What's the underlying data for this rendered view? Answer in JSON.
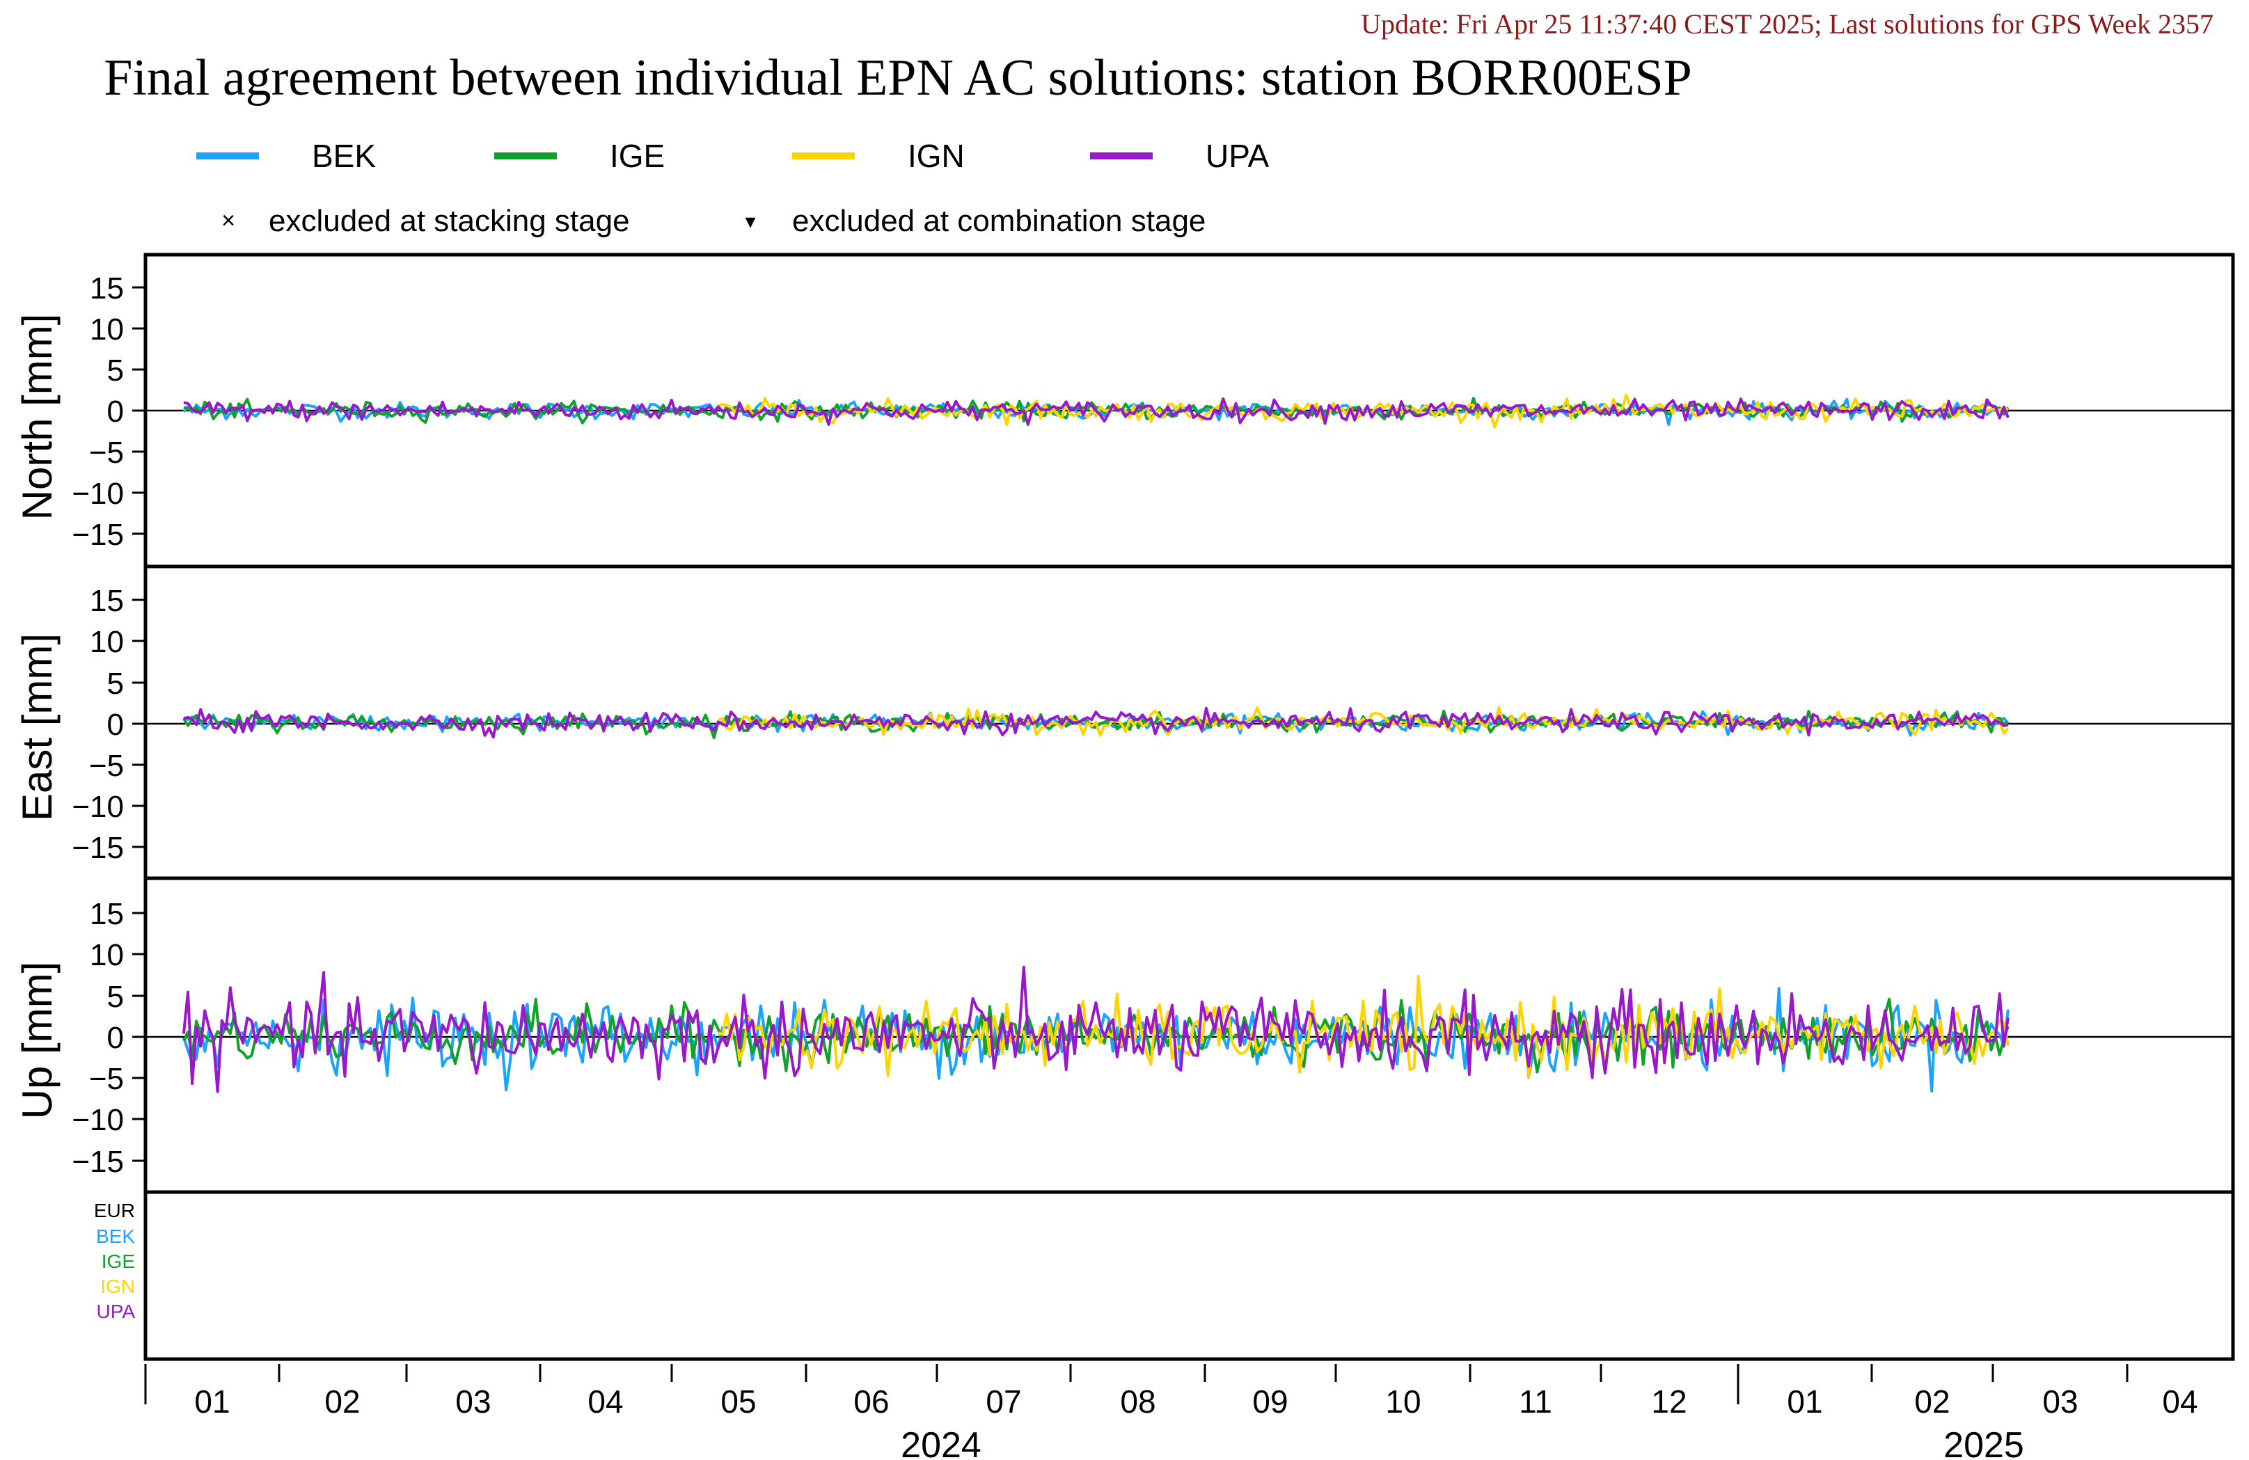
{
  "update_text": "Update: Fri Apr 25 11:37:40 CEST 2025; Last solutions for GPS Week 2357",
  "title": "Final agreement between individual EPN AC solutions: station BORR00ESP",
  "legend": {
    "series": [
      {
        "name": "BEK",
        "color": "#1aa3ff"
      },
      {
        "name": "IGE",
        "color": "#12a12a"
      },
      {
        "name": "IGN",
        "color": "#ffd400"
      },
      {
        "name": "UPA",
        "color": "#9a18cc"
      }
    ],
    "markers": [
      {
        "symbol": "×",
        "label": "excluded at stacking stage"
      },
      {
        "symbol": "▾",
        "label": "excluded at combination stage"
      }
    ]
  },
  "contrib": {
    "entries": [
      {
        "name": "EUR",
        "color": "#000000"
      },
      {
        "name": "BEK",
        "color": "#1aa3ff"
      },
      {
        "name": "IGE",
        "color": "#12a12a"
      },
      {
        "name": "IGN",
        "color": "#ffd400"
      },
      {
        "name": "UPA",
        "color": "#9a18cc"
      }
    ]
  },
  "x_axis": {
    "month_labels": [
      "01",
      "02",
      "03",
      "04",
      "05",
      "06",
      "07",
      "08",
      "09",
      "10",
      "11",
      "12",
      "01",
      "02",
      "03",
      "04"
    ],
    "year_labels": [
      "2024",
      "2025"
    ]
  },
  "chart_data": [
    {
      "type": "line",
      "panel": "north",
      "ylabel": "North [mm]",
      "ylim": [
        -19,
        19
      ],
      "yticks": [
        15,
        10,
        5,
        0,
        -5,
        -10,
        -15
      ],
      "ytick_labels": [
        "15",
        "10",
        "5",
        "0",
        "−5",
        "−10",
        "−15"
      ],
      "x_range": [
        "2023-12-18",
        "2025-04-23"
      ],
      "series_time_range": [
        "2023-12-27",
        "2025-03-01"
      ],
      "series": [
        {
          "name": "BEK",
          "noise_mm": 0.5,
          "max_abs_mm": 1.7
        },
        {
          "name": "IGE",
          "noise_mm": 0.5,
          "max_abs_mm": 1.5
        },
        {
          "name": "IGN",
          "noise_mm": 0.6,
          "max_abs_mm": 2.0,
          "start": "2024-05-01"
        },
        {
          "name": "UPA",
          "noise_mm": 0.6,
          "max_abs_mm": 1.7
        }
      ]
    },
    {
      "type": "line",
      "panel": "east",
      "ylabel": "East [mm]",
      "ylim": [
        -19,
        19
      ],
      "yticks": [
        15,
        10,
        5,
        0,
        -5,
        -10,
        -15
      ],
      "ytick_labels": [
        "15",
        "10",
        "5",
        "0",
        "−5",
        "−10",
        "−15"
      ],
      "x_range": [
        "2023-12-18",
        "2025-04-23"
      ],
      "series_time_range": [
        "2023-12-27",
        "2025-03-01"
      ],
      "series": [
        {
          "name": "BEK",
          "noise_mm": 0.5,
          "max_abs_mm": 2.0
        },
        {
          "name": "IGE",
          "noise_mm": 0.5,
          "max_abs_mm": 2.0
        },
        {
          "name": "IGN",
          "noise_mm": 0.6,
          "max_abs_mm": 3.5,
          "start": "2024-05-01"
        },
        {
          "name": "UPA",
          "noise_mm": 0.6,
          "max_abs_mm": 2.0
        }
      ]
    },
    {
      "type": "line",
      "panel": "up",
      "ylabel": "Up [mm]",
      "ylim": [
        -19,
        19
      ],
      "yticks": [
        15,
        10,
        5,
        0,
        -5,
        -10,
        -15
      ],
      "ytick_labels": [
        "15",
        "10",
        "5",
        "0",
        "−5",
        "−10",
        "−15"
      ],
      "x_range": [
        "2023-12-18",
        "2025-04-23"
      ],
      "series_time_range": [
        "2023-12-27",
        "2025-03-01"
      ],
      "series": [
        {
          "name": "BEK",
          "noise_mm": 2.0,
          "max_abs_mm": 9.5
        },
        {
          "name": "IGE",
          "noise_mm": 1.6,
          "max_abs_mm": 5.0
        },
        {
          "name": "IGN",
          "noise_mm": 2.0,
          "max_abs_mm": 8.0,
          "start": "2024-05-01"
        },
        {
          "name": "UPA",
          "noise_mm": 2.3,
          "max_abs_mm": 8.5
        }
      ]
    }
  ]
}
